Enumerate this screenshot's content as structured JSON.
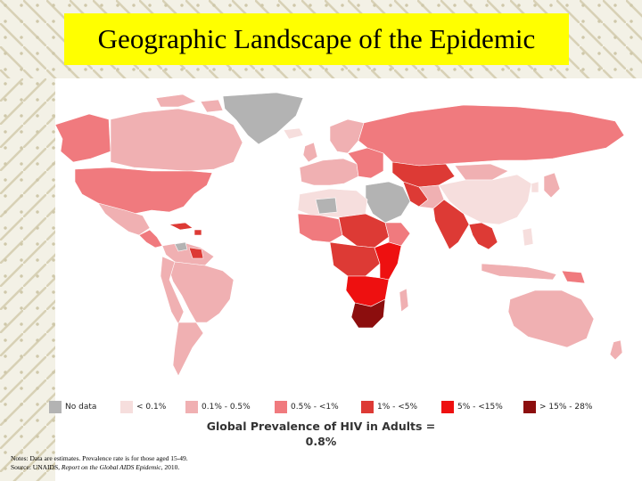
{
  "slide": {
    "title": "Geographic Landscape of the Epidemic"
  },
  "map": {
    "caption_line1": "Global Prevalence of HIV in Adults =",
    "caption_line2": "0.8%",
    "colors": {
      "no_data": "#b3b3b3",
      "lt_0_1": "#f6dedd",
      "0_1_0_5": "#f0b0b2",
      "0_5_1": "#f07a7e",
      "1_5": "#dd3a35",
      "5_15": "#ee1010",
      "15_28": "#8c0e0e"
    }
  },
  "legend": {
    "items": [
      {
        "label": "No data",
        "color": "#b3b3b3"
      },
      {
        "label": "< 0.1%",
        "color": "#f6dedd"
      },
      {
        "label": "0.1% - 0.5%",
        "color": "#f0b0b2"
      },
      {
        "label": "0.5% - <1%",
        "color": "#f07a7e"
      },
      {
        "label": "1% - <5%",
        "color": "#dd3a35"
      },
      {
        "label": "5% - <15%",
        "color": "#ee1010"
      },
      {
        "label": "> 15% - 28%",
        "color": "#8c0e0e"
      }
    ]
  },
  "notes": {
    "line1": "Notes: Data are estimates. Prevalence rate is for those aged 15-49.",
    "line2_prefix": "Source: UNAIDS, ",
    "line2_italic": "Report on the Global AIDS Epidemic",
    "line2_suffix": ", 2010."
  }
}
